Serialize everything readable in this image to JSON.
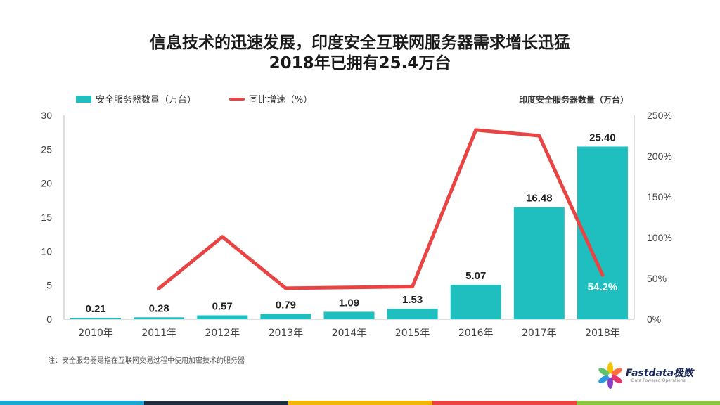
{
  "title_line1": "信息技术的迅速发展，印度安全互联网服务器需求增长迅猛",
  "title_line2": "2018年已拥有25.4万台",
  "legend": {
    "bar_label": "安全服务器数量（万台）",
    "line_label": "同比增速（%）"
  },
  "right_axis_title": "印度安全服务器数量（万台）",
  "footnote": "注：安全服务器是指在互联网交易过程中使用加密技术的服务器",
  "logo": {
    "name": "Fastdata极数",
    "tagline": "Data Powered Operations"
  },
  "colors": {
    "bar": "#1fbfbf",
    "line": "#e84444"
  },
  "chart_data": {
    "type": "bar",
    "categories": [
      "2010年",
      "2011年",
      "2012年",
      "2013年",
      "2014年",
      "2015年",
      "2016年",
      "2017年",
      "2018年"
    ],
    "series": [
      {
        "name": "安全服务器数量（万台）",
        "type": "bar",
        "axis": "left",
        "values": [
          0.21,
          0.28,
          0.57,
          0.79,
          1.09,
          1.53,
          5.07,
          16.48,
          25.4
        ],
        "labels": [
          "0.21",
          "0.28",
          "0.57",
          "0.79",
          "1.09",
          "1.53",
          "5.07",
          "16.48",
          "25.40"
        ]
      },
      {
        "name": "同比增速（%）",
        "type": "line",
        "axis": "right",
        "values": [
          null,
          38,
          101,
          38,
          39,
          40,
          232,
          225,
          54.2
        ]
      }
    ],
    "line_label": {
      "index": 8,
      "text": "54.2%"
    },
    "y_left": {
      "min": 0,
      "max": 30,
      "ticks": [
        "0",
        "5",
        "10",
        "15",
        "20",
        "25",
        "30"
      ]
    },
    "y_right": {
      "min": 0,
      "max": 250,
      "ticks": [
        "0%",
        "50%",
        "100%",
        "150%",
        "200%",
        "250%"
      ]
    },
    "legend_position": "top-left"
  }
}
